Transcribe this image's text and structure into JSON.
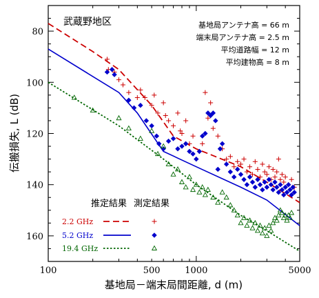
{
  "chart_data": {
    "type": "scatter",
    "region_label": "武蔵野地区",
    "params": [
      "基地局アンテナ高 = 66 m",
      "端末局アンテナ高 = 2.5 m",
      "平均道路幅 = 12 m",
      "平均建物高 = 8 m"
    ],
    "xlabel": "基地局－端末局間距離, d (m)",
    "ylabel": "伝搬損失, L (dB)",
    "x_scale": "log",
    "xlim": [
      100,
      5000
    ],
    "ylim": [
      70,
      170
    ],
    "y_inverted": true,
    "x_ticks": [
      100,
      500,
      1000,
      5000
    ],
    "y_ticks": [
      80,
      100,
      120,
      140,
      160
    ],
    "legend": {
      "header_estimate": "推定結果",
      "header_measured": "測定結果",
      "placement": "bottom-left"
    },
    "series": [
      {
        "name": "2.2 GHz",
        "color": "#cc0000",
        "line_style": "dashed",
        "marker": "plus",
        "estimate": [
          [
            100,
            77
          ],
          [
            200,
            88
          ],
          [
            300,
            95
          ],
          [
            500,
            109
          ],
          [
            700,
            121
          ],
          [
            1000,
            126
          ],
          [
            2000,
            133
          ],
          [
            3000,
            139
          ],
          [
            5000,
            147
          ]
        ],
        "measured": [
          [
            250,
            91
          ],
          [
            255,
            95
          ],
          [
            280,
            96
          ],
          [
            300,
            99
          ],
          [
            320,
            101
          ],
          [
            350,
            104
          ],
          [
            400,
            106
          ],
          [
            420,
            103
          ],
          [
            450,
            106
          ],
          [
            500,
            109
          ],
          [
            520,
            105
          ],
          [
            550,
            112
          ],
          [
            600,
            108
          ],
          [
            620,
            113
          ],
          [
            650,
            115
          ],
          [
            700,
            117
          ],
          [
            750,
            112
          ],
          [
            780,
            119
          ],
          [
            800,
            120
          ],
          [
            850,
            115
          ],
          [
            900,
            124
          ],
          [
            950,
            121
          ],
          [
            1050,
            127
          ],
          [
            1100,
            124
          ],
          [
            1150,
            104
          ],
          [
            1200,
            114
          ],
          [
            1250,
            108
          ],
          [
            1300,
            118
          ],
          [
            1400,
            121
          ],
          [
            1500,
            126
          ],
          [
            1600,
            130
          ],
          [
            1700,
            129
          ],
          [
            1800,
            133
          ],
          [
            1900,
            131
          ],
          [
            2000,
            132
          ],
          [
            2100,
            130
          ],
          [
            2200,
            135
          ],
          [
            2300,
            133
          ],
          [
            2400,
            136
          ],
          [
            2500,
            131
          ],
          [
            2600,
            134
          ],
          [
            2700,
            137
          ],
          [
            2800,
            132
          ],
          [
            2900,
            135
          ],
          [
            3000,
            136
          ],
          [
            3100,
            133
          ],
          [
            3200,
            138
          ],
          [
            3300,
            134
          ],
          [
            3400,
            137
          ],
          [
            3500,
            135
          ],
          [
            3600,
            130
          ],
          [
            3700,
            138
          ],
          [
            3800,
            136
          ],
          [
            3900,
            139
          ],
          [
            4000,
            137
          ],
          [
            4200,
            140
          ],
          [
            4400,
            138
          ],
          [
            4600,
            141
          ]
        ]
      },
      {
        "name": "5.2 GHz",
        "color": "#0000cc",
        "line_style": "solid",
        "marker": "diamond",
        "estimate": [
          [
            100,
            87
          ],
          [
            300,
            104
          ],
          [
            400,
            112
          ],
          [
            600,
            127
          ],
          [
            1000,
            133
          ],
          [
            2000,
            141
          ],
          [
            3000,
            146
          ],
          [
            5000,
            156
          ]
        ],
        "measured": [
          [
            250,
            96
          ],
          [
            270,
            95
          ],
          [
            280,
            97
          ],
          [
            350,
            107
          ],
          [
            380,
            110
          ],
          [
            420,
            109
          ],
          [
            460,
            115
          ],
          [
            500,
            117
          ],
          [
            540,
            121
          ],
          [
            560,
            124
          ],
          [
            600,
            126
          ],
          [
            650,
            123
          ],
          [
            700,
            122
          ],
          [
            750,
            126
          ],
          [
            800,
            125
          ],
          [
            850,
            124
          ],
          [
            900,
            127
          ],
          [
            950,
            128
          ],
          [
            1000,
            130
          ],
          [
            1050,
            127
          ],
          [
            1100,
            121
          ],
          [
            1150,
            120
          ],
          [
            1200,
            112
          ],
          [
            1250,
            113
          ],
          [
            1300,
            112
          ],
          [
            1350,
            115
          ],
          [
            1400,
            134
          ],
          [
            1450,
            126
          ],
          [
            1500,
            124
          ],
          [
            1600,
            132
          ],
          [
            1700,
            135
          ],
          [
            1800,
            137
          ],
          [
            1900,
            134
          ],
          [
            2000,
            136
          ],
          [
            2100,
            138
          ],
          [
            2200,
            140
          ],
          [
            2300,
            137
          ],
          [
            2400,
            139
          ],
          [
            2500,
            141
          ],
          [
            2600,
            138
          ],
          [
            2700,
            140
          ],
          [
            2800,
            142
          ],
          [
            2900,
            139
          ],
          [
            3000,
            141
          ],
          [
            3100,
            138
          ],
          [
            3200,
            140
          ],
          [
            3300,
            142
          ],
          [
            3400,
            139
          ],
          [
            3500,
            141
          ],
          [
            3600,
            143
          ],
          [
            3700,
            140
          ],
          [
            3800,
            142
          ],
          [
            3900,
            144
          ],
          [
            4000,
            141
          ],
          [
            4100,
            143
          ],
          [
            4200,
            140
          ],
          [
            4300,
            142
          ],
          [
            4400,
            144
          ],
          [
            4500,
            141
          ],
          [
            4600,
            143
          ]
        ]
      },
      {
        "name": "19.4 GHz",
        "color": "#006600",
        "line_style": "dotted",
        "marker": "triangle",
        "estimate": [
          [
            100,
            100
          ],
          [
            300,
            117
          ],
          [
            600,
            130
          ],
          [
            1000,
            140
          ],
          [
            2000,
            152
          ],
          [
            3000,
            158
          ],
          [
            5000,
            166
          ]
        ],
        "measured": [
          [
            150,
            106
          ],
          [
            200,
            111
          ],
          [
            300,
            114
          ],
          [
            350,
            118
          ],
          [
            420,
            122
          ],
          [
            500,
            119
          ],
          [
            550,
            128
          ],
          [
            600,
            125
          ],
          [
            650,
            132
          ],
          [
            700,
            136
          ],
          [
            750,
            134
          ],
          [
            800,
            139
          ],
          [
            850,
            141
          ],
          [
            900,
            137
          ],
          [
            950,
            142
          ],
          [
            1000,
            140
          ],
          [
            1050,
            143
          ],
          [
            1100,
            141
          ],
          [
            1150,
            144
          ],
          [
            1200,
            142
          ],
          [
            1300,
            145
          ],
          [
            1400,
            147
          ],
          [
            1500,
            143
          ],
          [
            1600,
            145
          ],
          [
            1700,
            148
          ],
          [
            1800,
            150
          ],
          [
            1900,
            152
          ],
          [
            2000,
            155
          ],
          [
            2100,
            153
          ],
          [
            2200,
            156
          ],
          [
            2300,
            154
          ],
          [
            2400,
            157
          ],
          [
            2500,
            155
          ],
          [
            2600,
            158
          ],
          [
            2700,
            156
          ],
          [
            2800,
            159
          ],
          [
            2900,
            157
          ],
          [
            3000,
            160
          ],
          [
            3100,
            156
          ],
          [
            3200,
            158
          ],
          [
            3300,
            155
          ],
          [
            3400,
            153
          ],
          [
            3500,
            154
          ],
          [
            3600,
            152
          ],
          [
            3700,
            150
          ],
          [
            3800,
            151
          ],
          [
            3900,
            153
          ],
          [
            4000,
            152
          ],
          [
            4100,
            154
          ],
          [
            4200,
            152
          ],
          [
            4300,
            153
          ],
          [
            4400,
            151
          ]
        ]
      }
    ]
  }
}
